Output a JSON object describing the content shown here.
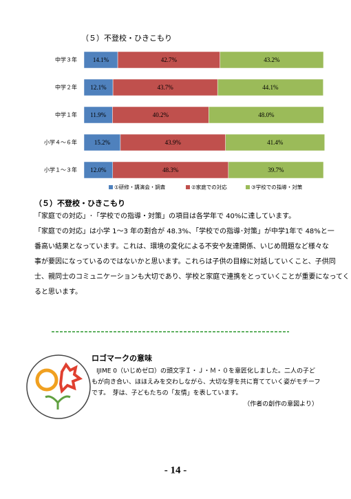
{
  "chart_data": {
    "type": "stacked-bar-horizontal",
    "title": "（５）不登校・ひきこもり",
    "categories": [
      "中学３年",
      "中学２年",
      "中学１年",
      "小学４～６年",
      "小学１～３年"
    ],
    "series": [
      {
        "name": "①研修・講演会・調査",
        "color": "#4f81bd",
        "values": [
          14.1,
          12.1,
          11.9,
          15.2,
          12.0
        ],
        "value_labels": [
          "14.1%",
          "12.1%",
          "11.9%",
          "15.2%",
          "12.0%"
        ]
      },
      {
        "name": "②家庭での対応",
        "color": "#c0504d",
        "values": [
          42.7,
          43.7,
          40.2,
          43.9,
          48.3
        ],
        "value_labels": [
          "42.7%",
          "43.7%",
          "40.2%",
          "43.9%",
          "48.3%"
        ]
      },
      {
        "name": "③学校での指導・対策",
        "color": "#9bbb59",
        "values": [
          43.2,
          44.1,
          48.0,
          41.4,
          39.7
        ],
        "value_labels": [
          "43.2%",
          "44.1%",
          "48.0%",
          "41.4%",
          "39.7%"
        ]
      }
    ],
    "xlim": [
      0,
      100
    ],
    "legend": "bottom"
  },
  "section": {
    "heading": "（５）不登校・ひきこもり",
    "lines": [
      "「家庭での対応」･「学校での指導・対策」の項目は各学年で 40%に達しています。",
      "「家庭での対応」は小学 1～3 年の割合が 48.3%、「学校での指導･対策」が中学1年で 48%と一",
      "番高い結果となっています。これは、環境の変化による不安や友達関係、いじめ問題など様々な",
      "事が要因になっているのではないかと思います。これらは子供の目線に対話していくこと、子供同",
      "士、親同士のコミュニケーションも大切であり、学校と家庭で連携をとっていくことが重要になってく",
      "ると思います。"
    ]
  },
  "logo_note": {
    "title": "ロゴマークの意味",
    "lines": [
      "IJIME 0（いじめゼロ）の頭文字Ｉ・Ｊ・Ｍ・０を意匠化しました。二人の子ど",
      "もが向き合い、ほほえみを交わしながら、大切な芽を共に育てていく姿がモチーフ",
      "です。　芽は、子どもたちの「友情」を表しています。"
    ],
    "credit": "（作者の創作の意図より）"
  },
  "page_number": "- 14 -"
}
